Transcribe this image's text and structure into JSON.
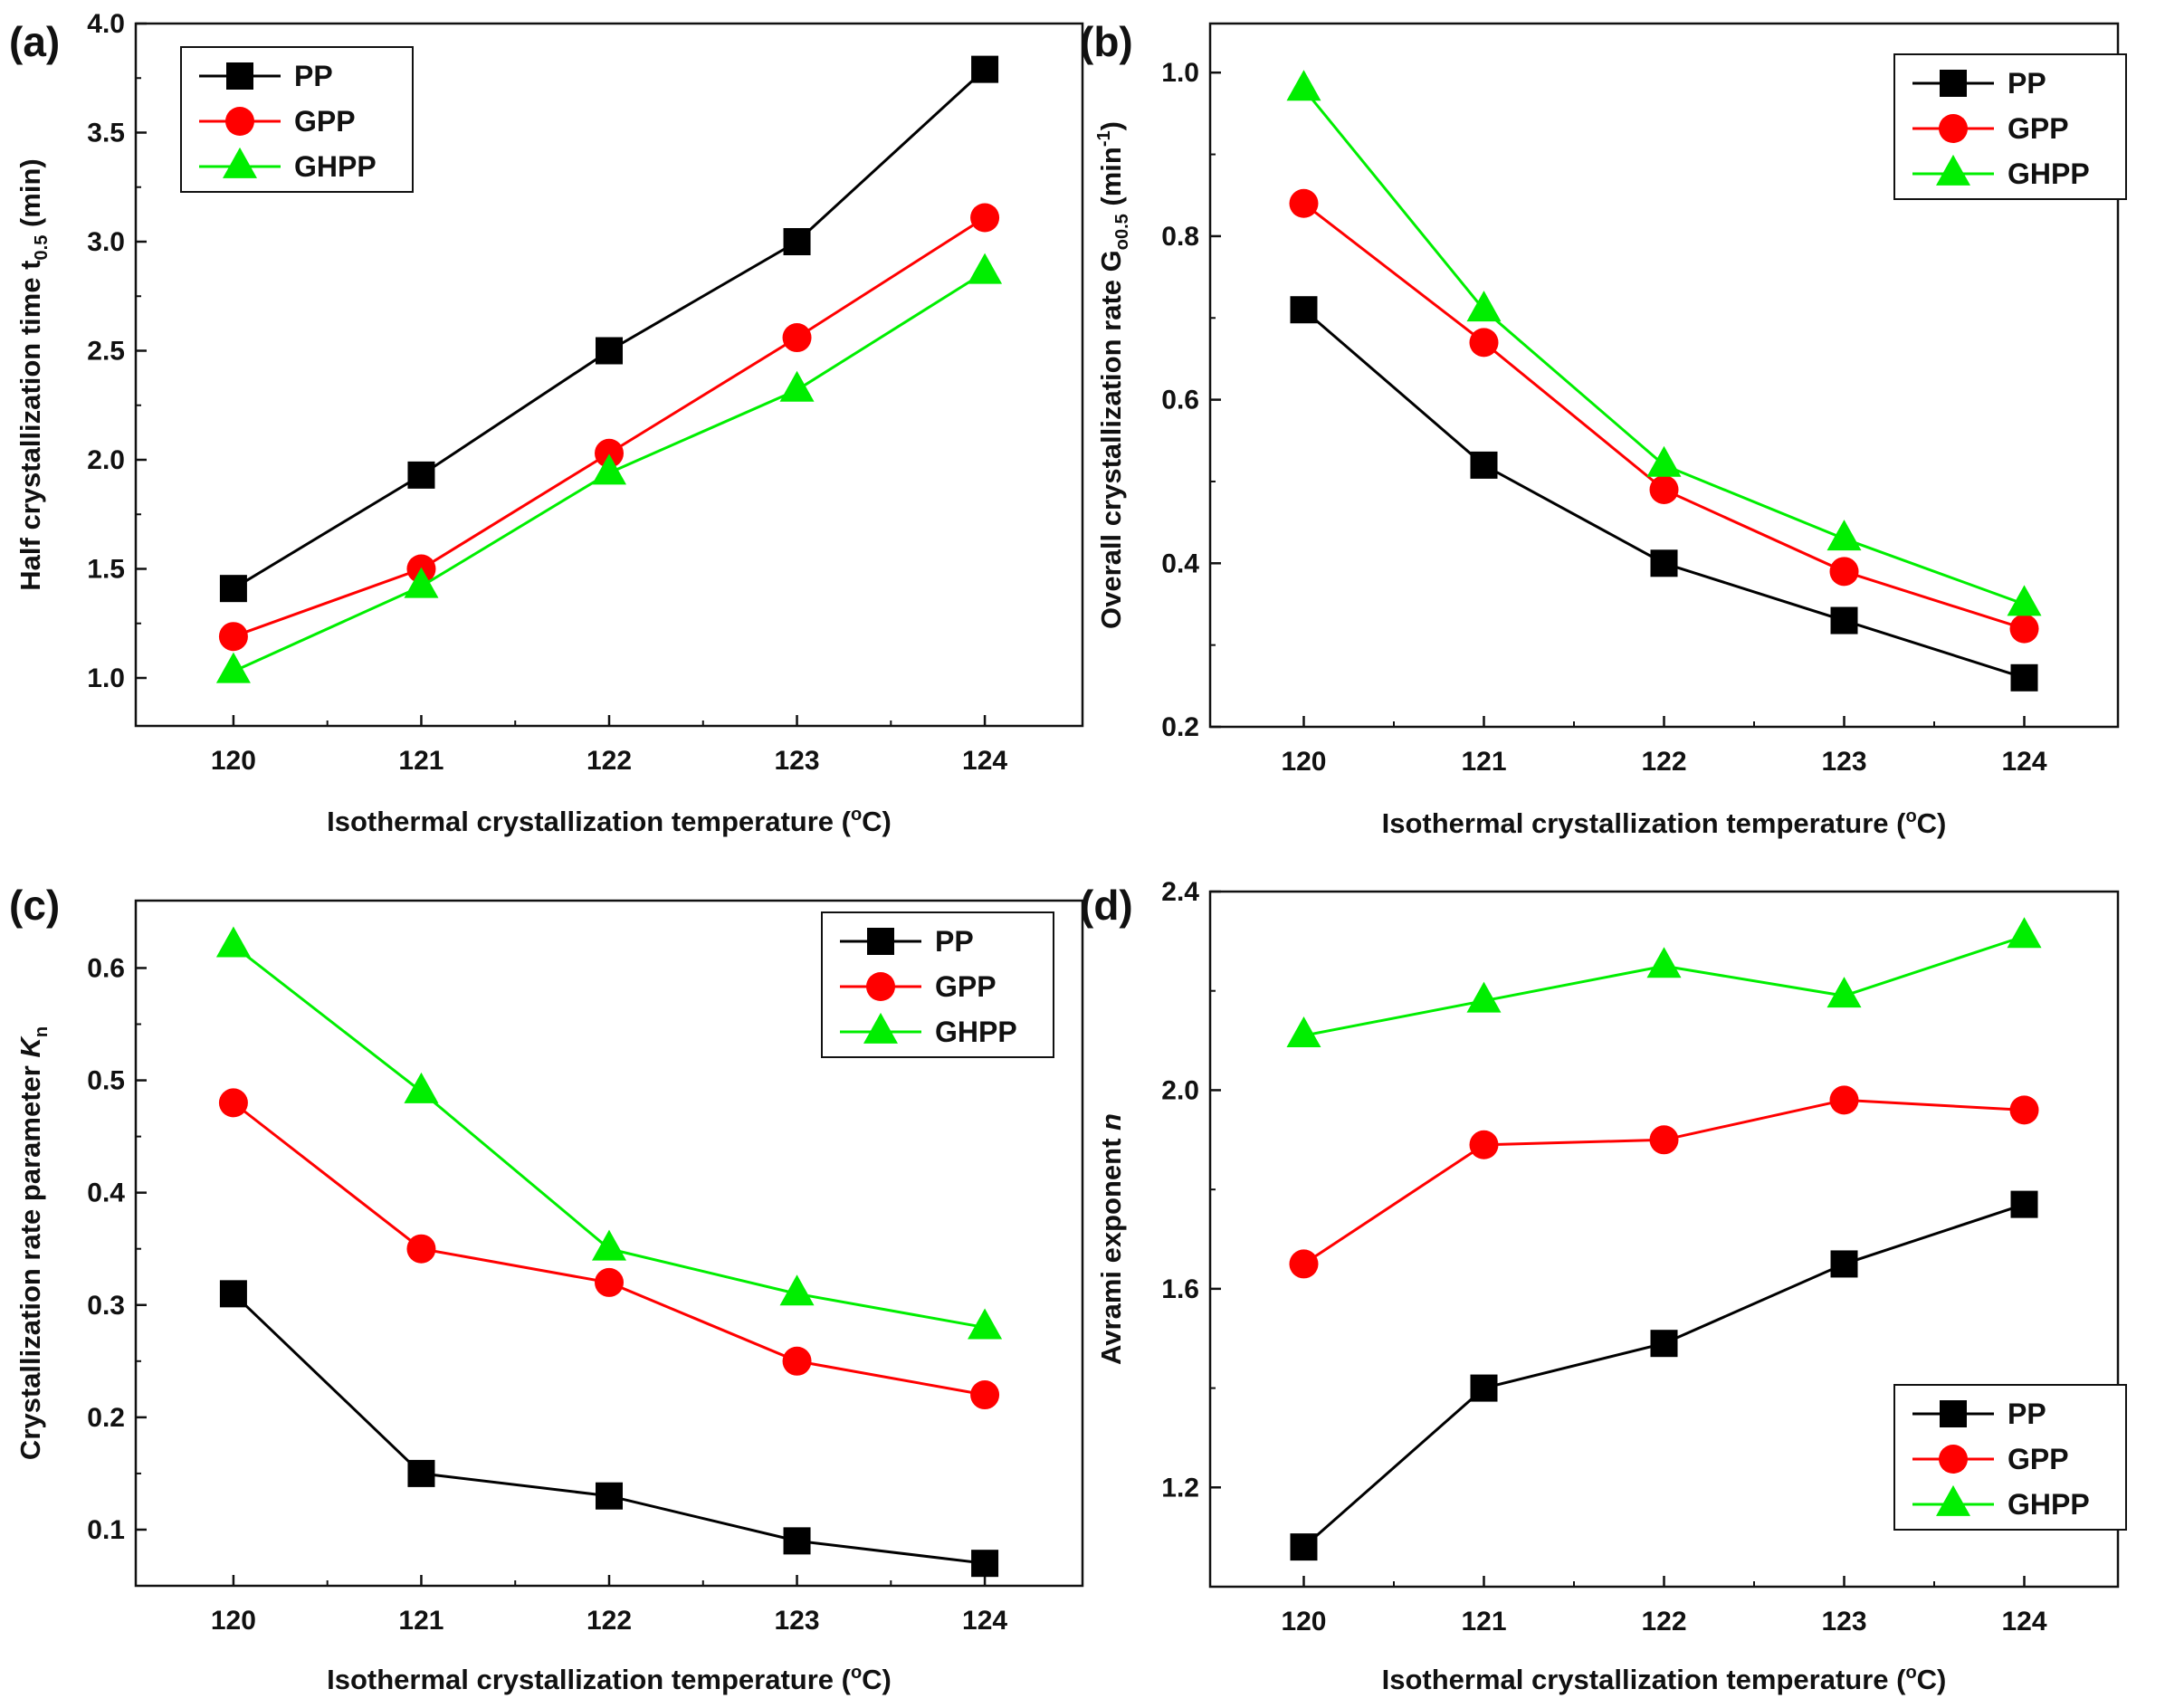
{
  "figure": {
    "description_colors": {
      "PP": "#000000",
      "GPP": "#ff0000",
      "GHPP": "#00ee00"
    }
  },
  "chart_data": [
    {
      "panel": "(a)",
      "type": "line",
      "xlabel": {
        "main": "Isothermal crystallization temperature (",
        "sup": "o",
        "tail": "C)"
      },
      "ylabel": {
        "main": "Half crystallization time t",
        "sub": "0.5",
        "tail": " (min)"
      },
      "x": [
        120,
        121,
        122,
        123,
        124
      ],
      "x_tick_labels": [
        "120",
        "121",
        "122",
        "123",
        "124"
      ],
      "ylim": [
        0.78,
        4.0
      ],
      "y_ticks": [
        1.0,
        1.5,
        2.0,
        2.5,
        3.0,
        3.5,
        4.0
      ],
      "y_tick_labels": [
        "1.0",
        "1.5",
        "2.0",
        "2.5",
        "3.0",
        "3.5",
        "4.0"
      ],
      "legend_position": "top-left",
      "series": [
        {
          "name": "PP",
          "color": "#000000",
          "marker": "square",
          "values": [
            1.41,
            1.93,
            2.5,
            3.0,
            3.79
          ]
        },
        {
          "name": "GPP",
          "color": "#ff0000",
          "marker": "circle",
          "values": [
            1.19,
            1.5,
            2.03,
            2.56,
            3.11
          ]
        },
        {
          "name": "GHPP",
          "color": "#00ee00",
          "marker": "triangle",
          "values": [
            1.03,
            1.42,
            1.94,
            2.32,
            2.86
          ]
        }
      ]
    },
    {
      "panel": "(b)",
      "type": "line",
      "xlabel": {
        "main": "Isothermal crystallization temperature (",
        "sup": "o",
        "tail": "C)"
      },
      "ylabel": {
        "main": "Overall crystallization rate G",
        "sub": "o0.5",
        "tail": " (min",
        "sup": "-1",
        "end": ")"
      },
      "x": [
        120,
        121,
        122,
        123,
        124
      ],
      "x_tick_labels": [
        "120",
        "121",
        "122",
        "123",
        "124"
      ],
      "ylim": [
        0.2,
        1.06
      ],
      "y_ticks": [
        0.2,
        0.4,
        0.6,
        0.8,
        1.0
      ],
      "y_tick_labels": [
        "0.2",
        "0.4",
        "0.6",
        "0.8",
        "1.0"
      ],
      "legend_position": "top-right",
      "series": [
        {
          "name": "PP",
          "color": "#000000",
          "marker": "square",
          "values": [
            0.71,
            0.52,
            0.4,
            0.33,
            0.26
          ]
        },
        {
          "name": "GPP",
          "color": "#ff0000",
          "marker": "circle",
          "values": [
            0.84,
            0.67,
            0.49,
            0.39,
            0.32
          ]
        },
        {
          "name": "GHPP",
          "color": "#00ee00",
          "marker": "triangle",
          "values": [
            0.98,
            0.71,
            0.52,
            0.43,
            0.35
          ]
        }
      ]
    },
    {
      "panel": "(c)",
      "type": "line",
      "xlabel": {
        "main": "Isothermal crystallization temperature (",
        "sup": "o",
        "tail": "C)"
      },
      "ylabel": {
        "main": "Crystallization rate parameter ",
        "italic": "K",
        "sub": "n"
      },
      "x": [
        120,
        121,
        122,
        123,
        124
      ],
      "x_tick_labels": [
        "120",
        "121",
        "122",
        "123",
        "124"
      ],
      "ylim": [
        0.05,
        0.66
      ],
      "y_ticks": [
        0.1,
        0.2,
        0.3,
        0.4,
        0.5,
        0.6
      ],
      "y_tick_labels": [
        "0.1",
        "0.2",
        "0.3",
        "0.4",
        "0.5",
        "0.6"
      ],
      "legend_position": "top-right",
      "series": [
        {
          "name": "PP",
          "color": "#000000",
          "marker": "square",
          "values": [
            0.31,
            0.15,
            0.13,
            0.09,
            0.07
          ]
        },
        {
          "name": "GPP",
          "color": "#ff0000",
          "marker": "circle",
          "values": [
            0.48,
            0.35,
            0.32,
            0.25,
            0.22
          ]
        },
        {
          "name": "GHPP",
          "color": "#00ee00",
          "marker": "triangle",
          "values": [
            0.62,
            0.49,
            0.35,
            0.31,
            0.28
          ]
        }
      ]
    },
    {
      "panel": "(d)",
      "type": "line",
      "xlabel": {
        "main": "Isothermal crystallization temperature (",
        "sup": "o",
        "tail": "C)"
      },
      "ylabel": {
        "main": "Avrami exponent ",
        "italic": "n"
      },
      "x": [
        120,
        121,
        122,
        123,
        124
      ],
      "x_tick_labels": [
        "120",
        "121",
        "122",
        "123",
        "124"
      ],
      "ylim": [
        1.0,
        2.4
      ],
      "y_ticks": [
        1.2,
        1.6,
        2.0,
        2.4
      ],
      "y_tick_labels": [
        "1.2",
        "1.6",
        "2.0",
        "2.4"
      ],
      "legend_position": "bottom-right",
      "series": [
        {
          "name": "PP",
          "color": "#000000",
          "marker": "square",
          "values": [
            1.08,
            1.4,
            1.49,
            1.65,
            1.77
          ]
        },
        {
          "name": "GPP",
          "color": "#ff0000",
          "marker": "circle",
          "values": [
            1.65,
            1.89,
            1.9,
            1.98,
            1.96
          ]
        },
        {
          "name": "GHPP",
          "color": "#00ee00",
          "marker": "triangle",
          "values": [
            2.11,
            2.18,
            2.25,
            2.19,
            2.31
          ]
        }
      ]
    }
  ]
}
